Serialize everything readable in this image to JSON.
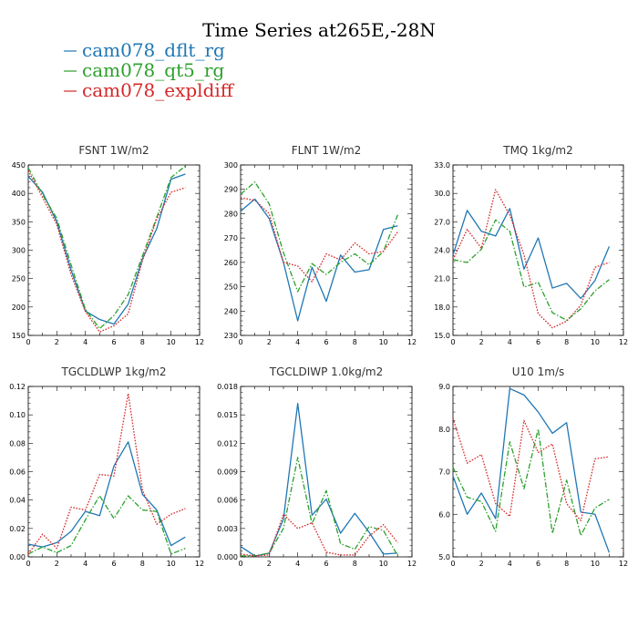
{
  "title": "Time Series at265E,-28N",
  "legend": [
    {
      "label": "cam078_dflt_rg",
      "color": "#1f77b4",
      "dash": "solid"
    },
    {
      "label": "cam078_qt5_rg",
      "color": "#2ca02c",
      "dash": "dashdot"
    },
    {
      "label": "cam078_expldiff",
      "color": "#d62728",
      "dash": "dotted"
    }
  ],
  "chart_data": [
    {
      "type": "line",
      "title": "FSNT   1W/m2",
      "x": [
        0,
        1,
        2,
        3,
        4,
        5,
        6,
        7,
        8,
        9,
        10,
        11
      ],
      "xlim": [
        0,
        12
      ],
      "xticks": [
        0,
        2,
        4,
        6,
        8,
        10,
        12
      ],
      "ylim": [
        150,
        450
      ],
      "yticks": [
        "150",
        "200",
        "250",
        "300",
        "350",
        "400",
        "450"
      ],
      "series": [
        {
          "name": "cam078_dflt_rg",
          "values": [
            430,
            402,
            350,
            265,
            193,
            178,
            170,
            205,
            285,
            338,
            425,
            434
          ]
        },
        {
          "name": "cam078_qt5_rg",
          "values": [
            445,
            398,
            356,
            274,
            196,
            162,
            185,
            222,
            290,
            358,
            428,
            448
          ]
        },
        {
          "name": "cam078_expldiff",
          "values": [
            440,
            393,
            345,
            257,
            192,
            156,
            167,
            188,
            282,
            355,
            402,
            410
          ]
        }
      ]
    },
    {
      "type": "line",
      "title": "FLNT   1W/m2",
      "x": [
        0,
        1,
        2,
        3,
        4,
        5,
        6,
        7,
        8,
        9,
        10,
        11
      ],
      "xlim": [
        0,
        12
      ],
      "xticks": [
        0,
        2,
        4,
        6,
        8,
        10,
        12
      ],
      "ylim": [
        230,
        300
      ],
      "yticks": [
        "230",
        "240",
        "250",
        "260",
        "270",
        "280",
        "290",
        "300"
      ],
      "series": [
        {
          "name": "cam078_dflt_rg",
          "values": [
            281,
            286,
            278,
            260,
            236,
            258,
            244,
            263,
            256,
            257,
            273.5,
            275
          ]
        },
        {
          "name": "cam078_qt5_rg",
          "values": [
            288,
            293,
            284,
            264,
            248,
            259.5,
            255,
            260,
            263.5,
            259,
            264.5,
            279.5
          ]
        },
        {
          "name": "cam078_expldiff",
          "values": [
            286.5,
            285.5,
            280,
            260,
            258.5,
            252,
            263.5,
            261,
            268,
            263.5,
            264.5,
            272.5
          ]
        }
      ]
    },
    {
      "type": "line",
      "title": "TMQ   1kg/m2",
      "x": [
        0,
        1,
        2,
        3,
        4,
        5,
        6,
        7,
        8,
        9,
        10,
        11
      ],
      "xlim": [
        0,
        12
      ],
      "xticks": [
        0,
        2,
        4,
        6,
        8,
        10,
        12
      ],
      "ylim": [
        15,
        33
      ],
      "yticks": [
        "15.0",
        "18.0",
        "21.0",
        "24.0",
        "27.0",
        "30.0",
        "33.0"
      ],
      "series": [
        {
          "name": "cam078_dflt_rg",
          "values": [
            23.5,
            28.2,
            26.0,
            25.5,
            28.4,
            22.0,
            25.3,
            20.0,
            20.5,
            18.9,
            20.8,
            24.4
          ]
        },
        {
          "name": "cam078_qt5_rg",
          "values": [
            23.0,
            22.7,
            24.1,
            27.2,
            26.0,
            20.1,
            20.6,
            17.4,
            16.6,
            17.8,
            19.7,
            20.9
          ]
        },
        {
          "name": "cam078_expldiff",
          "values": [
            23.0,
            26.2,
            24.2,
            30.4,
            27.7,
            23.5,
            17.3,
            15.8,
            16.5,
            18.2,
            22.2,
            22.7
          ]
        }
      ]
    },
    {
      "type": "line",
      "title": "TGCLDLWP   1kg/m2",
      "x": [
        0,
        1,
        2,
        3,
        4,
        5,
        6,
        7,
        8,
        9,
        10,
        11
      ],
      "xlim": [
        0,
        12
      ],
      "xticks": [
        0,
        2,
        4,
        6,
        8,
        10,
        12
      ],
      "ylim": [
        0,
        0.12
      ],
      "yticks": [
        "0.00",
        "0.02",
        "0.04",
        "0.06",
        "0.08",
        "0.10",
        "0.12"
      ],
      "series": [
        {
          "name": "cam078_dflt_rg",
          "values": [
            0.009,
            0.007,
            0.01,
            0.018,
            0.032,
            0.029,
            0.064,
            0.081,
            0.044,
            0.033,
            0.008,
            0.014
          ]
        },
        {
          "name": "cam078_qt5_rg",
          "values": [
            0.002,
            0.007,
            0.003,
            0.008,
            0.026,
            0.043,
            0.027,
            0.043,
            0.033,
            0.032,
            0.002,
            0.006
          ]
        },
        {
          "name": "cam078_expldiff",
          "values": [
            0.002,
            0.016,
            0.006,
            0.035,
            0.033,
            0.058,
            0.057,
            0.115,
            0.047,
            0.023,
            0.03,
            0.034
          ]
        }
      ]
    },
    {
      "type": "line",
      "title": "TGCLDIWP   1.0kg/m2",
      "x": [
        0,
        1,
        2,
        3,
        4,
        5,
        6,
        7,
        8,
        9,
        10,
        11
      ],
      "xlim": [
        0,
        12
      ],
      "xticks": [
        0,
        2,
        4,
        6,
        8,
        10,
        12
      ],
      "ylim": [
        0,
        0.018
      ],
      "yticks": [
        "0.000",
        "0.003",
        "0.006",
        "0.009",
        "0.012",
        "0.015",
        "0.018"
      ],
      "series": [
        {
          "name": "cam078_dflt_rg",
          "values": [
            0.0011,
            0.0001,
            0.0004,
            0.004,
            0.0162,
            0.0044,
            0.0061,
            0.0025,
            0.0046,
            0.0026,
            0.0003,
            0.0004
          ]
        },
        {
          "name": "cam078_qt5_rg",
          "values": [
            0.0001,
            0.0001,
            0.0004,
            0.003,
            0.0105,
            0.0035,
            0.007,
            0.0014,
            0.0008,
            0.0032,
            0.0028,
            0.0001
          ]
        },
        {
          "name": "cam078_expldiff",
          "values": [
            0.0003,
            0.0001,
            0.0002,
            0.0045,
            0.003,
            0.0036,
            0.0005,
            0.0002,
            0.0002,
            0.0022,
            0.0034,
            0.0015
          ]
        }
      ]
    },
    {
      "type": "line",
      "title": "U10   1m/s",
      "x": [
        0,
        1,
        2,
        3,
        4,
        5,
        6,
        7,
        8,
        9,
        10,
        11
      ],
      "xlim": [
        0,
        12
      ],
      "xticks": [
        0,
        2,
        4,
        6,
        8,
        10,
        12
      ],
      "ylim": [
        5,
        9
      ],
      "yticks": [
        "5.0",
        "6.0",
        "7.0",
        "8.0",
        "9.0"
      ],
      "series": [
        {
          "name": "cam078_dflt_rg",
          "values": [
            6.9,
            6.0,
            6.5,
            5.9,
            8.95,
            8.8,
            8.4,
            7.9,
            8.15,
            6.05,
            6.0,
            5.1
          ]
        },
        {
          "name": "cam078_qt5_rg",
          "values": [
            7.1,
            6.4,
            6.3,
            5.6,
            7.7,
            6.6,
            8.0,
            5.55,
            6.8,
            5.5,
            6.15,
            6.35
          ]
        },
        {
          "name": "cam078_expldiff",
          "values": [
            8.25,
            7.2,
            7.4,
            6.25,
            5.95,
            8.2,
            7.45,
            7.65,
            6.25,
            5.85,
            7.3,
            7.35
          ]
        }
      ]
    }
  ]
}
